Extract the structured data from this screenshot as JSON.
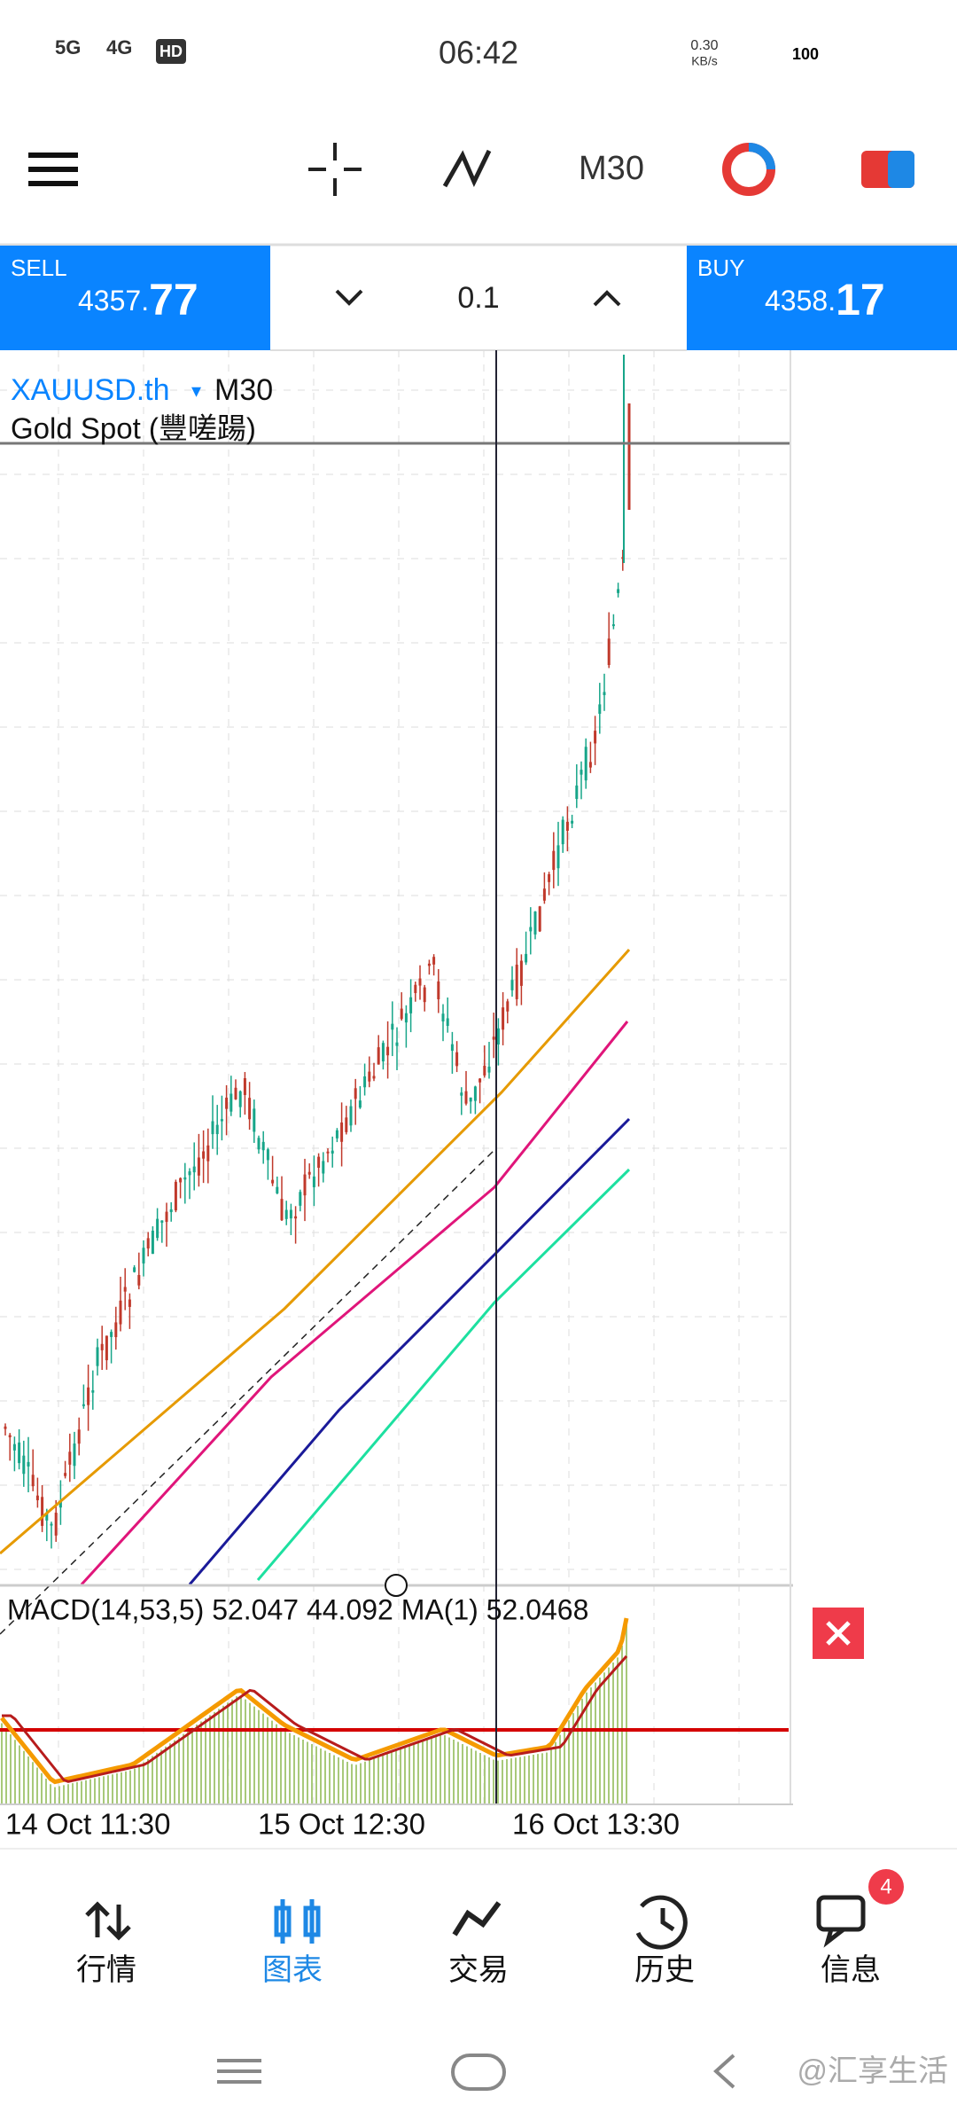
{
  "status_bar": {
    "network": [
      "5G",
      "4G",
      "HD"
    ],
    "time": "06:42",
    "speed": "0.30",
    "speed_unit": "KB/s",
    "battery": "100"
  },
  "toolbar": {
    "timeframe": "M30"
  },
  "trade": {
    "sell_label": "SELL",
    "sell_main": "4357.",
    "sell_big": "77",
    "lot": "0.1",
    "buy_label": "BUY",
    "buy_main": "4358.",
    "buy_big": "17"
  },
  "chart": {
    "symbol": "XAUUSD.th",
    "arrow": "▾",
    "timeframe": "M30",
    "description": "Gold Spot (豐嗟踼)",
    "indicator": "MACD(14,53,5) 52.047 44.092 MA(1) 52.0468",
    "dates": [
      "14 Oct 11:30",
      "15 Oct 12:30",
      "16 Oct 13:30"
    ]
  },
  "nav": {
    "tabs": [
      "行情",
      "图表",
      "交易",
      "历史",
      "信息"
    ],
    "badge": "4"
  },
  "watermark": "@汇享生活"
}
